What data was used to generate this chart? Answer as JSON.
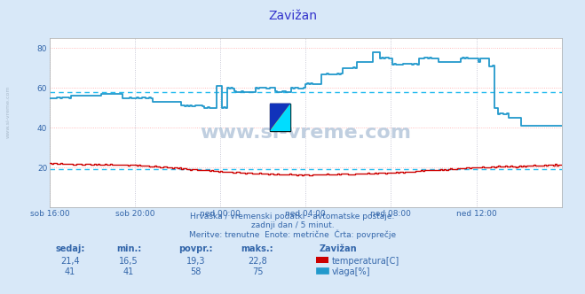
{
  "title": "Zavižan",
  "bg_color": "#d8e8f8",
  "plot_bg_color": "#ffffff",
  "grid_color_v": "#ddcccc",
  "grid_color_h": "#ffaaaa",
  "avg_color": "#22bbee",
  "xlim": [
    0,
    288
  ],
  "ylim": [
    0,
    85
  ],
  "yticks": [
    20,
    40,
    60,
    80
  ],
  "xtick_labels": [
    "sob 16:00",
    "sob 20:00",
    "ned 00:00",
    "ned 04:00",
    "ned 08:00",
    "ned 12:00"
  ],
  "xtick_positions": [
    0,
    48,
    96,
    144,
    192,
    240
  ],
  "temp_avg": 19.3,
  "hum_avg": 58,
  "subtitle1": "Hrvaška / vremenski podatki - avtomatske postaje.",
  "subtitle2": "zadnji dan / 5 minut.",
  "subtitle3": "Meritve: trenutne  Enote: metrične  Črta: povprečje",
  "stat_label1": "sedaj:",
  "stat_label2": "min.:",
  "stat_label3": "povpr.:",
  "stat_label4": "maks.:",
  "stat_label5": "Zavižan",
  "temp_sedaj": "21,4",
  "temp_min": "16,5",
  "temp_povpr": "19,3",
  "temp_maks": "22,8",
  "hum_sedaj": "41",
  "hum_min": "41",
  "hum_povpr": "58",
  "hum_maks": "75",
  "legend1": "temperatura[C]",
  "legend2": "vlaga[%]",
  "watermark": "www.si-vreme.com",
  "watermark_color": "#c0cfe0",
  "sidebar_text": "www.si-vreme.com",
  "temp_color": "#cc0000",
  "hum_color": "#2299cc",
  "logo_yellow": "#ffee00",
  "logo_cyan": "#00ddff",
  "logo_blue": "#1133bb"
}
